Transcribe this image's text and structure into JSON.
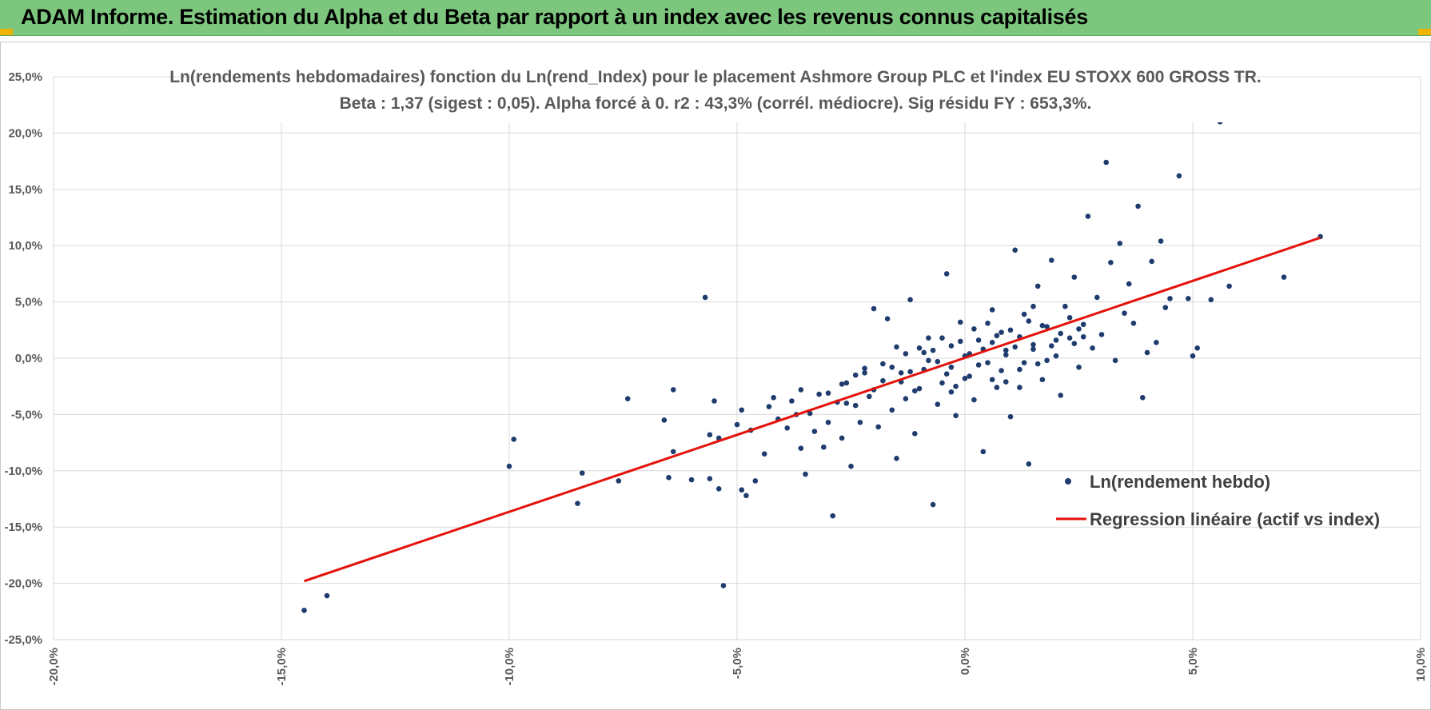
{
  "header": {
    "title": "ADAM Informe. Estimation du Alpha et du Beta par rapport à un index avec les revenus connus capitalisés",
    "background": "#7dc67e"
  },
  "chart_data": {
    "type": "scatter",
    "title": "Ln(rendements hebdomadaires) fonction du Ln(rend_Index) pour le placement Ashmore Group PLC et l'index EU STOXX 600 GROSS TR.",
    "subtitle": "Beta : 1,37 (sigest : 0,05). Alpha forcé à 0. r2 : 43,3% (corrél. médiocre). Sig résidu FY : 653,3%.",
    "xlabel": "",
    "ylabel": "",
    "xlim": [
      -20,
      10
    ],
    "ylim": [
      -25,
      25
    ],
    "x_ticks": [
      "-20,0%",
      "-15,0%",
      "-10,0%",
      "-5,0%",
      "0,0%",
      "5,0%",
      "10,0%"
    ],
    "y_ticks": [
      "25,0%",
      "20,0%",
      "15,0%",
      "10,0%",
      "5,0%",
      "0,0%",
      "-5,0%",
      "-10,0%",
      "-15,0%",
      "-20,0%",
      "-25,0%"
    ],
    "grid": true,
    "legend_position": "bottom-right",
    "series": [
      {
        "name": "Ln(rendement hebdo)",
        "kind": "scatter",
        "color": "#1f3c6e",
        "points": [
          [
            -14.5,
            -22.4
          ],
          [
            -14.0,
            -21.1
          ],
          [
            -10.0,
            -9.6
          ],
          [
            -9.9,
            -7.2
          ],
          [
            -8.5,
            -12.9
          ],
          [
            -8.4,
            -10.2
          ],
          [
            -7.6,
            -10.9
          ],
          [
            -7.4,
            -3.6
          ],
          [
            -6.6,
            -5.5
          ],
          [
            -6.5,
            -10.6
          ],
          [
            -6.4,
            -2.8
          ],
          [
            -6.4,
            -8.3
          ],
          [
            -6.0,
            -10.8
          ],
          [
            -5.7,
            5.4
          ],
          [
            -5.6,
            -10.7
          ],
          [
            -5.6,
            -6.8
          ],
          [
            -5.5,
            -3.8
          ],
          [
            -5.4,
            -11.6
          ],
          [
            -5.3,
            -20.2
          ],
          [
            -5.4,
            -7.1
          ],
          [
            -5.0,
            -5.9
          ],
          [
            -4.9,
            -4.6
          ],
          [
            -4.9,
            -11.7
          ],
          [
            -4.8,
            -12.2
          ],
          [
            -4.7,
            -6.4
          ],
          [
            -4.6,
            -10.9
          ],
          [
            -4.4,
            -8.5
          ],
          [
            -4.3,
            -4.3
          ],
          [
            -4.2,
            -3.5
          ],
          [
            -4.1,
            -5.4
          ],
          [
            -3.9,
            -6.2
          ],
          [
            -3.8,
            -3.8
          ],
          [
            -3.7,
            -5.0
          ],
          [
            -3.6,
            -8.0
          ],
          [
            -3.6,
            -2.8
          ],
          [
            -3.5,
            -10.3
          ],
          [
            -3.4,
            -4.9
          ],
          [
            -3.3,
            -6.5
          ],
          [
            -3.2,
            -3.2
          ],
          [
            -3.1,
            -7.9
          ],
          [
            -3.0,
            -5.7
          ],
          [
            -2.9,
            -14.0
          ],
          [
            -2.8,
            -3.9
          ],
          [
            -2.7,
            -7.1
          ],
          [
            -2.6,
            -2.2
          ],
          [
            -2.5,
            -9.6
          ],
          [
            -2.4,
            -4.2
          ],
          [
            -2.3,
            -5.7
          ],
          [
            -2.2,
            -0.9
          ],
          [
            -2.1,
            -3.4
          ],
          [
            -2.0,
            4.4
          ],
          [
            -1.9,
            -6.1
          ],
          [
            -1.8,
            -2.0
          ],
          [
            -1.7,
            3.5
          ],
          [
            -1.6,
            -4.6
          ],
          [
            -1.5,
            -8.9
          ],
          [
            -1.4,
            -1.3
          ],
          [
            -1.3,
            -3.6
          ],
          [
            -1.2,
            5.2
          ],
          [
            -1.1,
            -6.7
          ],
          [
            -1.0,
            -2.7
          ],
          [
            -0.9,
            -1.0
          ],
          [
            -0.8,
            1.8
          ],
          [
            -0.7,
            -13.0
          ],
          [
            -0.6,
            -4.1
          ],
          [
            -0.5,
            -2.2
          ],
          [
            -0.4,
            7.5
          ],
          [
            -0.3,
            -0.8
          ],
          [
            -0.2,
            -5.1
          ],
          [
            -0.1,
            3.2
          ],
          [
            0.0,
            -1.8
          ],
          [
            0.1,
            0.4
          ],
          [
            0.2,
            -3.7
          ],
          [
            0.3,
            1.6
          ],
          [
            0.4,
            -8.3
          ],
          [
            0.5,
            -0.4
          ],
          [
            0.6,
            4.3
          ],
          [
            0.7,
            -2.6
          ],
          [
            0.8,
            2.3
          ],
          [
            0.9,
            0.7
          ],
          [
            1.0,
            -5.2
          ],
          [
            1.1,
            9.6
          ],
          [
            1.2,
            -1.0
          ],
          [
            1.3,
            3.9
          ],
          [
            1.4,
            -9.4
          ],
          [
            1.5,
            1.2
          ],
          [
            1.6,
            6.4
          ],
          [
            1.7,
            -1.9
          ],
          [
            1.8,
            2.8
          ],
          [
            1.9,
            8.7
          ],
          [
            2.0,
            0.2
          ],
          [
            2.1,
            -3.3
          ],
          [
            2.2,
            4.6
          ],
          [
            2.3,
            1.8
          ],
          [
            2.4,
            7.2
          ],
          [
            2.5,
            -0.8
          ],
          [
            2.6,
            3.0
          ],
          [
            2.7,
            12.6
          ],
          [
            2.8,
            0.9
          ],
          [
            2.9,
            5.4
          ],
          [
            3.0,
            2.1
          ],
          [
            3.1,
            17.4
          ],
          [
            3.2,
            8.5
          ],
          [
            3.3,
            -0.2
          ],
          [
            3.4,
            10.2
          ],
          [
            3.5,
            4.0
          ],
          [
            3.6,
            6.6
          ],
          [
            3.7,
            3.1
          ],
          [
            3.8,
            13.5
          ],
          [
            3.9,
            -3.5
          ],
          [
            4.0,
            0.5
          ],
          [
            4.1,
            8.6
          ],
          [
            4.2,
            1.4
          ],
          [
            4.3,
            10.4
          ],
          [
            4.4,
            4.5
          ],
          [
            4.5,
            5.3
          ],
          [
            4.7,
            16.2
          ],
          [
            4.9,
            5.3
          ],
          [
            5.0,
            0.2
          ],
          [
            5.1,
            0.9
          ],
          [
            5.4,
            5.2
          ],
          [
            5.6,
            21.0
          ],
          [
            5.8,
            6.4
          ],
          [
            7.0,
            7.2
          ],
          [
            7.8,
            10.8
          ],
          [
            -1.8,
            -0.5
          ],
          [
            -1.5,
            1.0
          ],
          [
            -1.2,
            -1.2
          ],
          [
            -0.9,
            0.5
          ],
          [
            -0.6,
            -0.3
          ],
          [
            -0.3,
            1.1
          ],
          [
            0.0,
            0.2
          ],
          [
            0.3,
            -0.6
          ],
          [
            0.6,
            1.4
          ],
          [
            0.9,
            0.3
          ],
          [
            1.2,
            1.9
          ],
          [
            1.5,
            0.8
          ],
          [
            1.8,
            -0.2
          ],
          [
            2.1,
            2.2
          ],
          [
            2.4,
            1.3
          ],
          [
            -2.4,
            -1.5
          ],
          [
            -2.0,
            -2.8
          ],
          [
            -1.6,
            -0.8
          ],
          [
            -1.0,
            0.9
          ],
          [
            -0.4,
            -1.4
          ],
          [
            0.2,
            2.6
          ],
          [
            0.8,
            -1.1
          ],
          [
            1.4,
            3.3
          ],
          [
            2.0,
            1.6
          ],
          [
            2.6,
            1.9
          ],
          [
            -0.7,
            0.7
          ],
          [
            -0.2,
            -2.5
          ],
          [
            0.4,
            0.8
          ],
          [
            1.0,
            2.5
          ],
          [
            1.6,
            -0.5
          ],
          [
            -1.4,
            -2.1
          ],
          [
            -0.8,
            -0.2
          ],
          [
            0.5,
            3.1
          ],
          [
            1.1,
            1.0
          ],
          [
            1.7,
            2.9
          ],
          [
            2.3,
            3.6
          ],
          [
            -2.7,
            -2.3
          ],
          [
            -2.2,
            -1.3
          ],
          [
            -1.3,
            0.4
          ],
          [
            -0.5,
            1.8
          ],
          [
            0.1,
            -1.6
          ],
          [
            0.7,
            2.0
          ],
          [
            1.3,
            -0.4
          ],
          [
            1.9,
            1.1
          ],
          [
            2.5,
            2.6
          ],
          [
            -0.1,
            1.5
          ],
          [
            0.9,
            -2.1
          ],
          [
            1.5,
            4.6
          ],
          [
            -3.0,
            -3.1
          ],
          [
            -2.6,
            -4.0
          ],
          [
            -1.1,
            -2.9
          ],
          [
            -0.3,
            -3.0
          ],
          [
            0.6,
            -1.9
          ],
          [
            1.2,
            -2.6
          ]
        ]
      },
      {
        "name": "Regression linéaire (actif vs index)",
        "kind": "line",
        "color": "#e3120b",
        "points": [
          [
            -14.5,
            -19.8
          ],
          [
            7.8,
            10.7
          ]
        ]
      }
    ]
  }
}
